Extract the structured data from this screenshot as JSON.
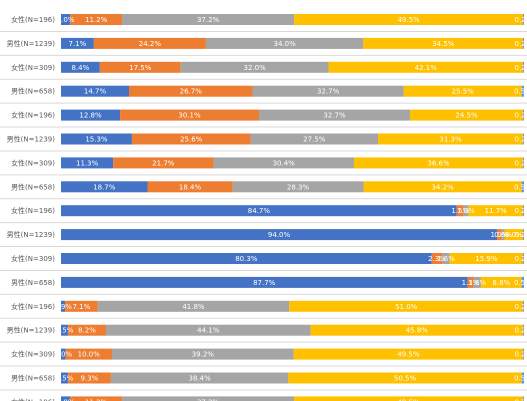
{
  "chart_data": {
    "type": "bar",
    "orientation": "horizontal",
    "stacked": "percent",
    "colors": [
      "#4472C4",
      "#ED7D31",
      "#A5A5A5",
      "#FFC000",
      "#5B9BD5"
    ],
    "rows": [
      {
        "label": "女性(N=196)",
        "values": [
          2.0,
          11.2,
          37.2,
          49.5,
          0.2
        ],
        "labels": [
          "2.0%",
          "11.2%",
          "37.2%",
          "49.5%",
          "0.2%"
        ]
      },
      {
        "label": "男性(N=1239)",
        "values": [
          7.1,
          24.2,
          34.0,
          34.5,
          0.2
        ],
        "labels": [
          "7.1%",
          "24.2%",
          "34.0%",
          "34.5%",
          "0.2%"
        ]
      },
      {
        "label": "女性(N=309)",
        "values": [
          8.4,
          17.5,
          32.0,
          42.1,
          0.2
        ],
        "labels": [
          "8.4%",
          "17.5%",
          "32.0%",
          "42.1%",
          "0.2%"
        ]
      },
      {
        "label": "男性(N=658)",
        "values": [
          14.7,
          26.7,
          32.7,
          25.5,
          0.5
        ],
        "labels": [
          "14.7%",
          "26.7%",
          "32.7%",
          "25.5%",
          "0.5%"
        ]
      },
      {
        "label": "女性(N=196)",
        "values": [
          12.8,
          30.1,
          32.7,
          24.5,
          0.2
        ],
        "labels": [
          "12.8%",
          "30.1%",
          "32.7%",
          "24.5%",
          "0.2%"
        ]
      },
      {
        "label": "男性(N=1239)",
        "values": [
          15.3,
          25.6,
          27.5,
          31.3,
          0.2
        ],
        "labels": [
          "15.3%",
          "25.6%",
          "27.5%",
          "31.3%",
          "0.2%"
        ]
      },
      {
        "label": "女性(N=309)",
        "values": [
          11.3,
          21.7,
          30.4,
          36.6,
          0.2
        ],
        "labels": [
          "11.3%",
          "21.7%",
          "30.4%",
          "36.6%",
          "0.2%"
        ]
      },
      {
        "label": "男性(N=658)",
        "values": [
          18.7,
          18.4,
          28.3,
          34.2,
          0.5
        ],
        "labels": [
          "18.7%",
          "18.4%",
          "28.3%",
          "34.2%",
          "0.5%"
        ]
      },
      {
        "label": "女性(N=196)",
        "values": [
          84.7,
          1.5,
          1.0,
          11.7,
          0.2
        ],
        "labels": [
          "84.7%",
          "1.5%",
          "1.0%",
          "11.7%",
          "0.2%"
        ]
      },
      {
        "label": "男性(N=1239)",
        "values": [
          94.0,
          1.0,
          0.6,
          4.0,
          0.2
        ],
        "labels": [
          "94.0%",
          "1.0%",
          "0.6%",
          "4.0%",
          "0.2%"
        ]
      },
      {
        "label": "女性(N=309)",
        "values": [
          80.3,
          2.3,
          1.6,
          15.9,
          0.2
        ],
        "labels": [
          "80.3%",
          "2.3%",
          "1.6%",
          "15.9%",
          "0.2%"
        ]
      },
      {
        "label": "男性(N=658)",
        "values": [
          87.7,
          1.3,
          1.6,
          8.8,
          0.5
        ],
        "labels": [
          "87.7%",
          "1.3%",
          "1.6%",
          "8.8%",
          "0.5%"
        ]
      },
      {
        "label": "女性(N=196)",
        "values": [
          0.9,
          7.1,
          41.8,
          51.0,
          0.2
        ],
        "labels": [
          "0.9%",
          "7.1%",
          "41.8%",
          "51.0%",
          "0.2%"
        ]
      },
      {
        "label": "男性(N=1239)",
        "values": [
          1.5,
          8.2,
          44.1,
          45.8,
          0.2
        ],
        "labels": [
          "1.5%",
          "8.2%",
          "44.1%",
          "45.8%",
          "0.2%"
        ]
      },
      {
        "label": "女性(N=309)",
        "values": [
          1.0,
          10.0,
          39.2,
          49.5,
          0.2
        ],
        "labels": [
          "1.0%",
          "10.0%",
          "39.2%",
          "49.5%",
          "0.2%"
        ]
      },
      {
        "label": "男性(N=658)",
        "values": [
          1.5,
          9.3,
          38.4,
          50.5,
          0.5
        ],
        "labels": [
          "1.5%",
          "9.3%",
          "38.4%",
          "50.5%",
          "0.5%"
        ]
      },
      {
        "label": "女性(N=196)",
        "values": [
          2.0,
          11.2,
          37.2,
          49.5,
          0.2
        ],
        "labels": [
          "2.0%",
          "11.2%",
          "37.2%",
          "49.5%",
          "0.2%"
        ]
      }
    ]
  }
}
